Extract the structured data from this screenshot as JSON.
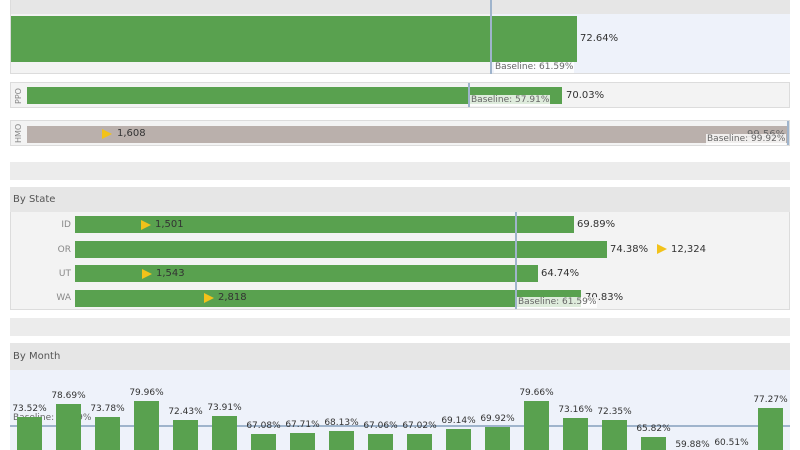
{
  "top_panel": {
    "value": "72.64%",
    "baseline": "Baseline: 61.59%"
  },
  "plan_rows": [
    {
      "label": "PPO",
      "value": "70.03%",
      "baseline": "Baseline: 57.91%"
    },
    {
      "label": "HMO",
      "count": "1,608",
      "value": "99.56%",
      "baseline": "Baseline: 99.92%"
    }
  ],
  "by_state": {
    "title": "By State",
    "rows": [
      {
        "state": "ID",
        "count": "1,501",
        "value": "69.89%"
      },
      {
        "state": "OR",
        "count": "12,324",
        "value": "74.38%"
      },
      {
        "state": "UT",
        "count": "1,543",
        "value": "64.74%"
      },
      {
        "state": "WA",
        "count": "2,818",
        "value": "70.83%"
      }
    ],
    "baseline": "Baseline: 61.59%"
  },
  "by_month": {
    "title": "By Month",
    "baseline": "Baseline: 61.59%",
    "bars": [
      {
        "label": "73.52%",
        "value": 73.52,
        "color": "green"
      },
      {
        "label": "78.69%",
        "value": 78.69,
        "color": "green"
      },
      {
        "label": "73.78%",
        "value": 73.78,
        "color": "green"
      },
      {
        "label": "79.96%",
        "value": 79.96,
        "color": "green"
      },
      {
        "label": "72.43%",
        "value": 72.43,
        "color": "green"
      },
      {
        "label": "73.91%",
        "value": 73.91,
        "color": "green"
      },
      {
        "label": "67.08%",
        "value": 67.08,
        "color": "green"
      },
      {
        "label": "67.71%",
        "value": 67.71,
        "color": "green"
      },
      {
        "label": "68.13%",
        "value": 68.13,
        "color": "green"
      },
      {
        "label": "67.06%",
        "value": 67.06,
        "color": "green"
      },
      {
        "label": "67.02%",
        "value": 67.02,
        "color": "green"
      },
      {
        "label": "69.14%",
        "value": 69.14,
        "color": "green"
      },
      {
        "label": "69.92%",
        "value": 69.92,
        "color": "green"
      },
      {
        "label": "79.66%",
        "value": 79.66,
        "color": "green"
      },
      {
        "label": "73.16%",
        "value": 73.16,
        "color": "green"
      },
      {
        "label": "72.35%",
        "value": 72.35,
        "color": "green"
      },
      {
        "label": "65.82%",
        "value": 65.82,
        "color": "green"
      },
      {
        "label": "59.88%",
        "value": 59.88,
        "color": "grey"
      },
      {
        "label": "60.51%",
        "value": 60.51,
        "color": "grey"
      },
      {
        "label": "77.27%",
        "value": 77.27,
        "color": "green"
      }
    ]
  },
  "colors": {
    "above_baseline": "#59a14f",
    "below_baseline": "#bab0ac",
    "marker": "#f2c21a",
    "baseline_line": "#9fb4cc",
    "panel_bg": "#eef2fa"
  }
}
